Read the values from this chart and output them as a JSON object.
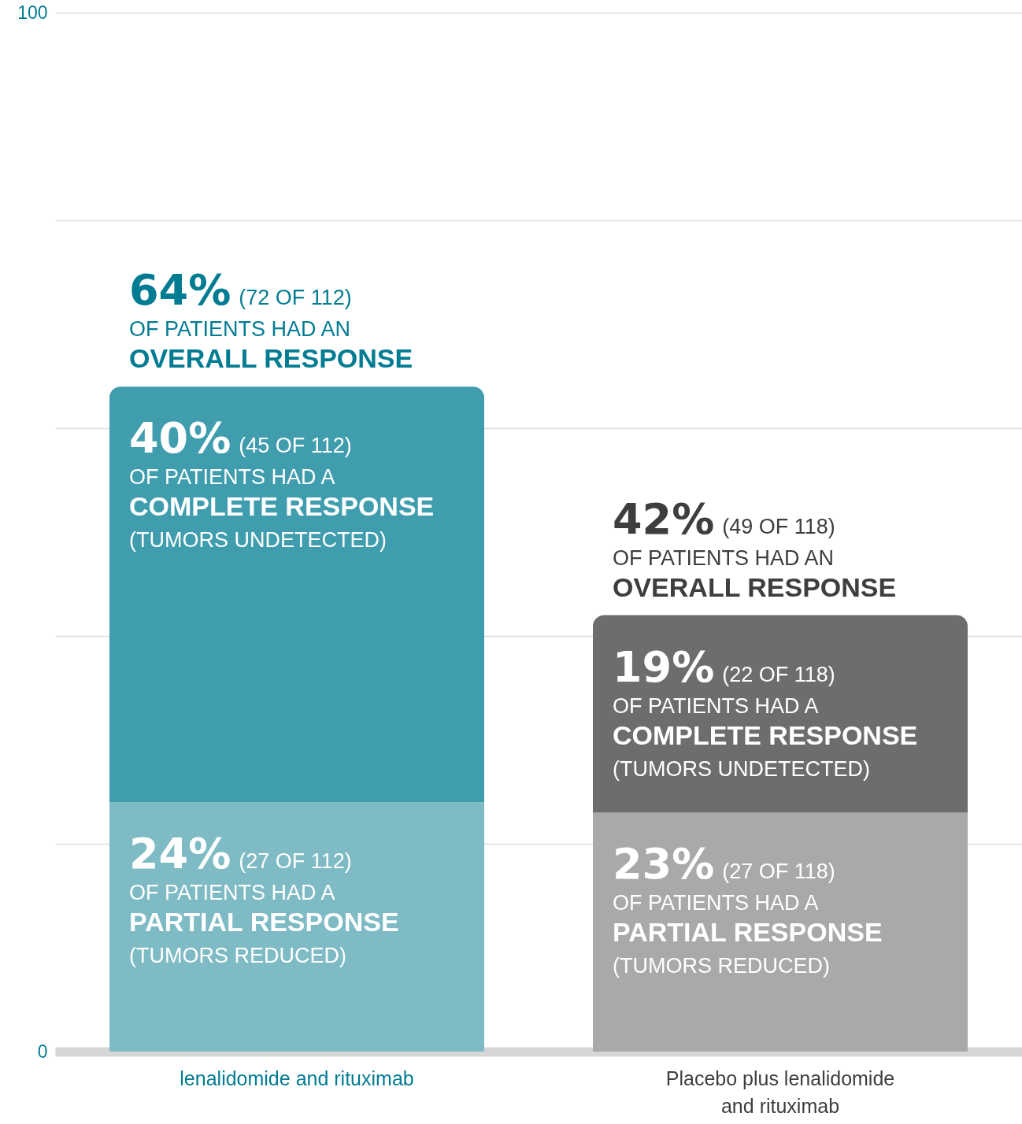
{
  "chart_data": {
    "type": "bar",
    "categories": [
      "lenalidomide and rituximab",
      "Placebo plus lenalidomide and rituximab"
    ],
    "stacked": true,
    "series": [
      {
        "colors": [
          "#7ebbc5",
          "#a9a9a9"
        ],
        "values": [
          24,
          23
        ],
        "value_labels": [
          "24% (27 OF 112)\nOF PATIENTS HAD A\nPARTIAL RESPONSE\n(TUMORS REDUCED)",
          "23% (27 OF 118)\nOF PATIENTS HAD A\nPARTIAL RESPONSE\n(TUMORS REDUCED)"
        ]
      },
      {
        "colors": [
          "#3f9dae",
          "#6d6d6d"
        ],
        "values": [
          40,
          19
        ],
        "value_labels": [
          "40% (45 OF 112)\nOF PATIENTS HAD A\nCOMPLETE RESPONSE\n(TUMORS UNDETECTED)",
          "19% (22 OF 118)\nOF PATIENTS HAD A\nCOMPLETE RESPONSE\n(TUMORS UNDETECTED)"
        ]
      }
    ],
    "totals": [
      "64% (72 OF 112)\nOF PATIENTS HAD AN\nOVERALL RESPONSE",
      "42% (49 OF 118)\nOF PATIENTS HAD AN\nOVERALL RESPONSE"
    ],
    "ylim": [
      0,
      100
    ],
    "yticks": [
      0,
      {
        "value": 20,
        "label": null
      },
      {
        "value": 40,
        "label": null
      },
      {
        "value": 60,
        "label": null
      },
      {
        "value": 80,
        "label": null
      },
      100
    ],
    "grid": "y"
  }
}
